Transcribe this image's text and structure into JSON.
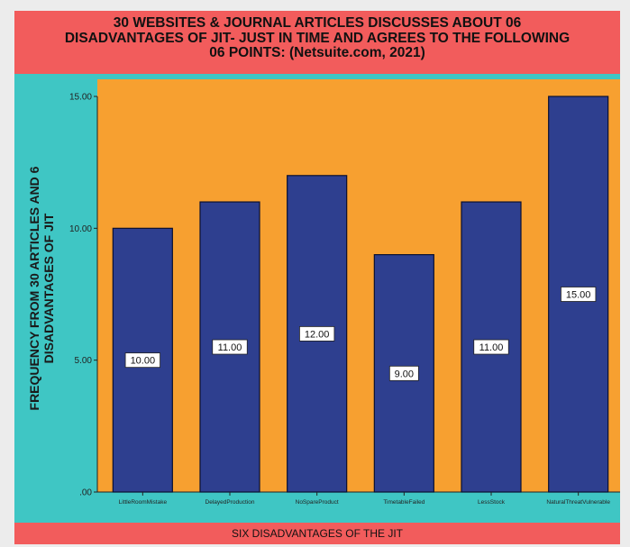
{
  "colors": {
    "title_band": "#F25C5C",
    "outer_band": "#3FC6C4",
    "plot_background": "#F7A030",
    "bar_fill": "#2E3F8F",
    "bar_stroke": "#0B1030"
  },
  "chart_data": {
    "type": "bar",
    "title_lines": [
      "30 WEBSITES & JOURNAL ARTICLES DISCUSSES ABOUT 06",
      "DISADVANTAGES OF JIT- JUST IN TIME AND AGREES TO THE FOLLOWING",
      "06 POINTS: (Netsuite.com, 2021)"
    ],
    "xlabel": "SIX DISADVANTAGES OF THE JIT",
    "ylabel_lines": [
      "FREQUENCY FROM 30 ARTICLES AND 6",
      "DISADVANTAGES OF JIT"
    ],
    "categories": [
      "LittleRoomMistake",
      "DelayedProduction",
      "NoSpareProduct",
      "TimetableFailed",
      "LessStock",
      "NaturalThreatVulnerable"
    ],
    "values": [
      10,
      11,
      12,
      9,
      11,
      15
    ],
    "data_labels": [
      "10.00",
      "11.00",
      "12.00",
      "9.00",
      "11.00",
      "15.00"
    ],
    "yticks": [
      ".00",
      "5.00",
      "10.00",
      "15.00"
    ],
    "ytick_values": [
      0,
      5,
      10,
      15
    ],
    "ylim": [
      0,
      15
    ],
    "grid": false,
    "legend": "none"
  }
}
